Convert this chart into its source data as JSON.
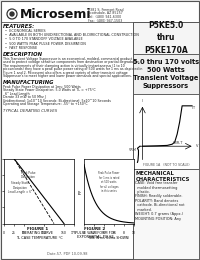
{
  "title_part": "P5KE5.0\nthru\nP5KE170A",
  "title_desc": "5.0 thru 170 volts\n500 Watts\nTransient Voltage\nSuppressors",
  "company": "Microsemi",
  "features_title": "FEATURES:",
  "features": [
    "ECONOMICAL SERIES",
    "AVAILABLE IN BOTH UNIDIRECTIONAL AND BI-DIRECTIONAL CONSTRUCTION",
    "5.0 TO 170 STANDOFF VOLTAGE AVAILABLE",
    "500 WATTS PEAK PULSE POWER DISSIPATION",
    "FAST RESPONSE"
  ],
  "desc_title": "DESCRIPTION",
  "desc_lines": [
    "This Transient Voltage Suppressor is an economical, molded, commercial product",
    "used to protect voltage sensitive components from destruction or partial degradation.",
    "The requirements of their clamping action is virtually instantaneous (1 to 10",
    "picoseconds) they have a peak pulse power rating of 500 watts for 1 ms as depicted in",
    "Figure 1 and 2. Microsemi also offers a great variety of other transient voltage",
    "Suppressor's to meet higher and lower power demands and special applications."
  ],
  "mfg_title": "MANUFACTURING",
  "mfg_lines": [
    "Peak Pulse Power Dissipation at 1ms: 500 Watts",
    "Steady State Power Dissipation: 5.0 Watts at TL = +75°C",
    "  6\" Lead Length",
    "Derate 33 mW to 50 Mhz J",
    "Unidirectional: 1x10^10 Seconds: Bi-directional: 5x10^10 Seconds",
    "Operating and Storage Temperature: -55° to +150°C"
  ],
  "fig1_title": "FIGURE 1",
  "fig1_caption": "DERATING CURVE",
  "fig2_title": "FIGURE 2",
  "fig2_caption": "PULSE WAVEFORM FOR\nEXPONENTIAL PULSE",
  "mech_title": "MECHANICAL\nCHARACTERISTICS",
  "mech_lines": [
    "CASE: Void free transfer",
    "  molded thermosetting",
    "  plastic.",
    "FINISH: Readily solderable.",
    "POLARITY: Band denotes",
    "  cathode. Bi-directional not",
    "  marked.",
    "WEIGHT: 0.7 grams (Appx.)",
    "MOUNTING POSITION: Any"
  ],
  "bg_color": "#e8e8e8",
  "box_color": "#ffffff",
  "text_color": "#111111",
  "border_color": "#555555",
  "date_line": "Date-57, PDF 10-09-98"
}
